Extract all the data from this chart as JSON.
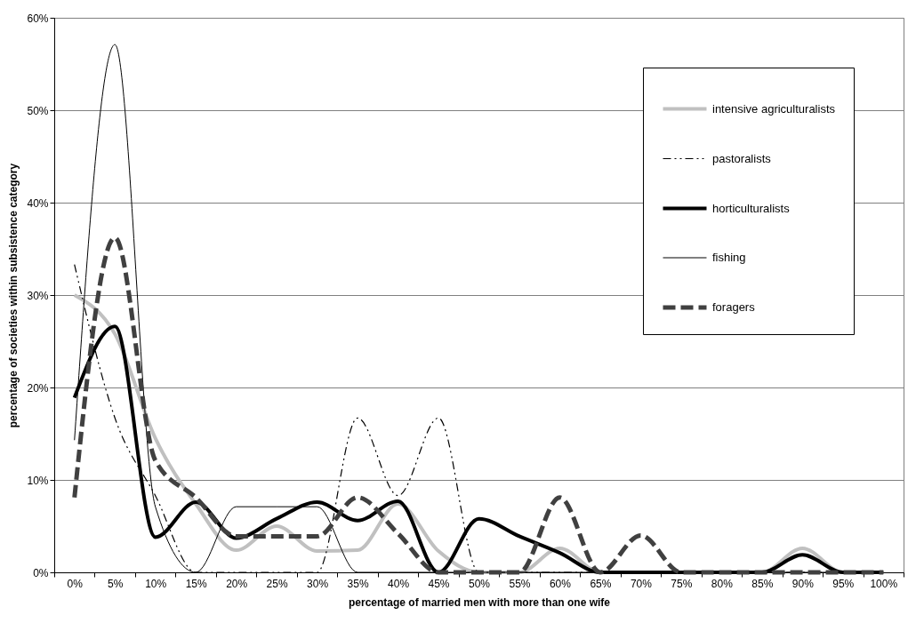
{
  "chart_data": {
    "type": "line",
    "xlabel": "percentage of married men with more than one wife",
    "ylabel": "percentage of societies within subsistence category",
    "categories": [
      "0%",
      "5%",
      "10%",
      "15%",
      "20%",
      "25%",
      "30%",
      "35%",
      "40%",
      "45%",
      "50%",
      "55%",
      "60%",
      "65%",
      "70%",
      "75%",
      "80%",
      "85%",
      "90%",
      "95%",
      "100%"
    ],
    "series": [
      {
        "name": "intensive agriculturalists",
        "color": "#c0c0c0",
        "line_style": "solid",
        "values": [
          30.0,
          25.8,
          14.5,
          7.4,
          2.4,
          5.0,
          2.3,
          2.4,
          7.4,
          2.3,
          0,
          0,
          2.6,
          0,
          0,
          0,
          0,
          0,
          2.6,
          0,
          0
        ]
      },
      {
        "name": "pastoralists",
        "color": "#000000",
        "line_style": "dashdot",
        "values": [
          33.3,
          16.7,
          8.3,
          0,
          0,
          0,
          0,
          16.7,
          8.3,
          16.7,
          0,
          0,
          0,
          0,
          0,
          0,
          0,
          0,
          0,
          0,
          0
        ]
      },
      {
        "name": "horticulturalists",
        "color": "#000000",
        "line_style": "solid",
        "values": [
          18.9,
          26.6,
          3.8,
          7.6,
          3.7,
          5.8,
          7.6,
          5.6,
          7.7,
          0,
          5.8,
          3.9,
          2.1,
          0,
          0,
          0,
          0,
          0,
          1.9,
          0,
          0
        ]
      },
      {
        "name": "fishing",
        "color": "#000000",
        "line_style": "solid",
        "values": [
          14.3,
          57.1,
          7.1,
          0,
          7.1,
          7.1,
          7.1,
          0,
          0,
          0,
          0,
          0,
          0,
          0,
          0,
          0,
          0,
          0,
          0,
          0,
          0
        ]
      },
      {
        "name": "foragers",
        "color": "#404040",
        "line_style": "dashed",
        "values": [
          8.1,
          36.2,
          12.1,
          8.1,
          3.9,
          3.9,
          3.9,
          8.1,
          4.2,
          0,
          0,
          0,
          8.1,
          0,
          4.0,
          0,
          0,
          0,
          0,
          0,
          0
        ]
      }
    ],
    "ylim": [
      0,
      60
    ],
    "yticks": [
      {
        "value": 0,
        "label": "0%"
      },
      {
        "value": 10,
        "label": "10%"
      },
      {
        "value": 20,
        "label": "20%"
      },
      {
        "value": 30,
        "label": "30%"
      },
      {
        "value": 40,
        "label": "40%"
      },
      {
        "value": 50,
        "label": "50%"
      },
      {
        "value": 60,
        "label": "60%"
      }
    ],
    "grid": "y",
    "legend": "top right"
  }
}
